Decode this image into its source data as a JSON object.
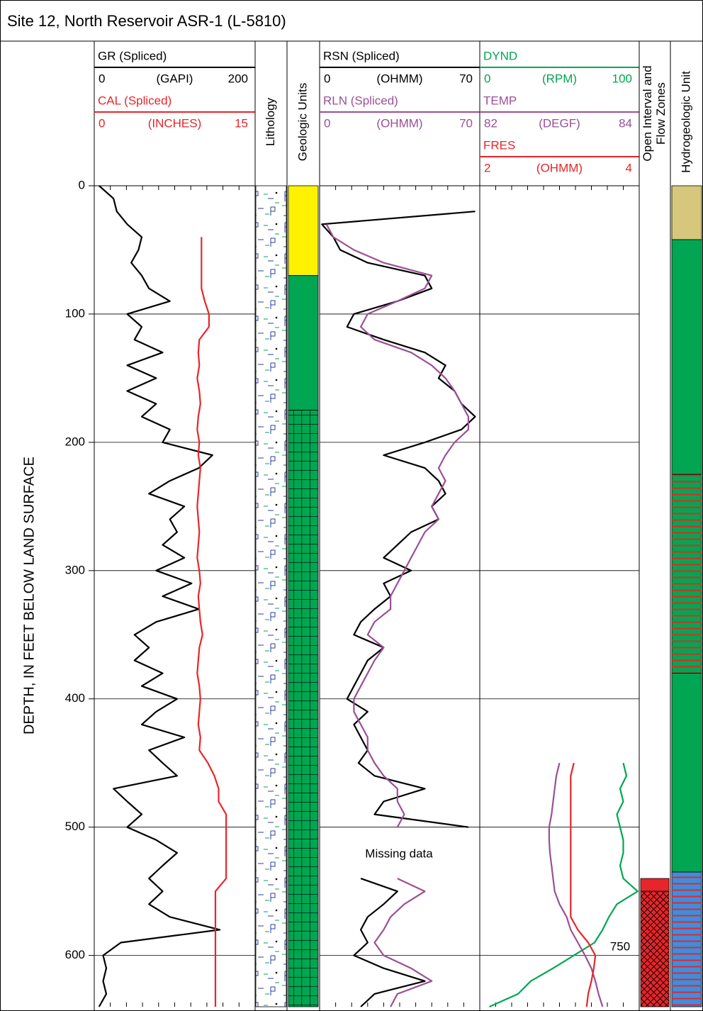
{
  "chart_data": {
    "type": "well_log",
    "title": "Site 12, North Reservoir ASR-1 (L-5810)",
    "ylabel": "DEPTH, IN FEET BELOW LAND SURFACE",
    "ylim": [
      0,
      640
    ],
    "yticks": [
      0,
      100,
      200,
      300,
      400,
      500,
      600
    ],
    "grid": true,
    "tracks": [
      {
        "depth": [
          0,
          10,
          20,
          30,
          40,
          50,
          60,
          70,
          80,
          90,
          100,
          110,
          120,
          130,
          140,
          150,
          160,
          170,
          180,
          190,
          200,
          210,
          220,
          230,
          240,
          250,
          260,
          270,
          280,
          290,
          300,
          310,
          320,
          330,
          340,
          350,
          360,
          370,
          380,
          390,
          400,
          410,
          420,
          430,
          440,
          450,
          460,
          470,
          480,
          490,
          500,
          510,
          520,
          530,
          540,
          550,
          560,
          570,
          580,
          590,
          600,
          610,
          620,
          630,
          640
        ],
        "series": [
          {
            "name": "GR (Spliced)",
            "unit": "(GAPI)",
            "xlim": [
              0,
              200
            ],
            "color": "#000000",
            "values": [
              6,
              24,
              28,
              41,
              59,
              55,
              46,
              59,
              68,
              94,
              41,
              59,
              50,
              85,
              41,
              77,
              41,
              77,
              59,
              94,
              85,
              147,
              130,
              94,
              68,
              112,
              94,
              103,
              85,
              112,
              77,
              121,
              85,
              130,
              77,
              50,
              68,
              50,
              85,
              59,
              103,
              77,
              59,
              112,
              68,
              85,
              103,
              24,
              41,
              59,
              41,
              77,
              103,
              85,
              68,
              85,
              68,
              94,
              156,
              33,
              11,
              15,
              11,
              15,
              6
            ]
          },
          {
            "name": "CAL (Spliced)",
            "unit": "(INCHES)",
            "xlim": [
              0,
              15
            ],
            "color": "#e8252a",
            "values": [
              null,
              null,
              null,
              null,
              10,
              10,
              10,
              10,
              10,
              10.3,
              10.7,
              10.7,
              9.8,
              9.7,
              9.8,
              9.6,
              9.8,
              9.9,
              9.7,
              9.6,
              9.8,
              9.7,
              9.9,
              9.8,
              9.7,
              9.6,
              9.7,
              9.8,
              9.7,
              9.6,
              9.8,
              9.9,
              9.7,
              9.8,
              9.9,
              10.1,
              9.8,
              9.7,
              9.6,
              9.8,
              9.9,
              9.8,
              9.7,
              9.9,
              9.8,
              10.6,
              11.2,
              11.6,
              11.6,
              12.3,
              12.3,
              12.3,
              12.3,
              12.3,
              12.3,
              11.3,
              11.3,
              11.3,
              11.3,
              11.3,
              11.3,
              11.3,
              11.3,
              11.3,
              11.3
            ]
          }
        ]
      },
      {
        "title": "Lithology"
      },
      {
        "title": "Geologic Units",
        "intervals": [
          {
            "top": 0,
            "bottom": 70,
            "color": "#fff200",
            "pattern": "solid"
          },
          {
            "top": 70,
            "bottom": 175,
            "color": "#00a651",
            "pattern": "solid"
          },
          {
            "top": 175,
            "bottom": 640,
            "color": "#00a651",
            "pattern": "grid"
          }
        ]
      },
      {
        "depth": [
          0,
          10,
          20,
          30,
          40,
          50,
          60,
          70,
          80,
          90,
          100,
          110,
          120,
          130,
          140,
          150,
          160,
          170,
          180,
          190,
          200,
          210,
          220,
          230,
          240,
          250,
          260,
          270,
          280,
          290,
          300,
          310,
          320,
          330,
          340,
          350,
          360,
          370,
          380,
          390,
          400,
          410,
          420,
          430,
          440,
          450,
          460,
          470,
          480,
          490,
          500,
          510,
          520,
          530,
          540,
          550,
          560,
          570,
          580,
          590,
          600,
          610,
          620,
          630,
          640
        ],
        "series": [
          {
            "name": "RSN (Spliced)",
            "unit": "(OHMM)",
            "xlim": [
              0,
              70
            ],
            "color": "#000000",
            "values": [
              null,
              null,
              68,
              1,
              6,
              9,
              21,
              46,
              49,
              34,
              15,
              12,
              28,
              46,
              55,
              52,
              59,
              62,
              68,
              62,
              46,
              28,
              46,
              52,
              55,
              49,
              52,
              40,
              34,
              28,
              40,
              28,
              31,
              24,
              18,
              15,
              28,
              21,
              18,
              15,
              12,
              21,
              15,
              18,
              21,
              17,
              24,
              46,
              28,
              24,
              65,
              null,
              null,
              null,
              18,
              34,
              28,
              21,
              18,
              21,
              15,
              28,
              46,
              24,
              18
            ]
          },
          {
            "name": "RLN (Spliced)",
            "unit": "(OHMM)",
            "xlim": [
              0,
              70
            ],
            "color": "#9b4f96",
            "values": [
              null,
              null,
              null,
              3,
              6,
              15,
              28,
              49,
              46,
              34,
              21,
              18,
              24,
              40,
              49,
              55,
              59,
              62,
              65,
              65,
              59,
              55,
              52,
              55,
              52,
              49,
              52,
              46,
              43,
              40,
              37,
              34,
              31,
              31,
              24,
              21,
              28,
              24,
              21,
              18,
              15,
              15,
              18,
              21,
              21,
              24,
              28,
              34,
              34,
              37,
              34,
              null,
              null,
              null,
              34,
              46,
              37,
              31,
              28,
              24,
              28,
              40,
              49,
              34,
              31
            ]
          }
        ],
        "annotations": [
          "Missing data"
        ]
      },
      {
        "depth": [
          450,
          460,
          470,
          480,
          490,
          500,
          510,
          520,
          530,
          540,
          550,
          560,
          570,
          580,
          590,
          600,
          610,
          620,
          630,
          640
        ],
        "series": [
          {
            "name": "DYND",
            "unit": "(RPM)",
            "xlim": [
              0,
              100
            ],
            "color": "#00a651",
            "values": [
              90,
              92,
              88,
              90,
              86,
              88,
              90,
              90,
              88,
              90,
              99,
              86,
              81,
              77,
              72,
              59,
              46,
              32,
              24,
              6
            ]
          },
          {
            "name": "TEMP",
            "unit": "(DEGF)",
            "xlim": [
              82,
              84
            ],
            "color": "#9b4f96",
            "values": [
              83,
              82.96,
              82.94,
              82.92,
              82.9,
              82.87,
              82.87,
              82.88,
              82.9,
              82.92,
              82.94,
              83,
              83.09,
              83.14,
              83.23,
              83.32,
              83.4,
              83.45,
              83.49,
              83.54
            ]
          },
          {
            "name": "FRES",
            "unit": "(OHMM)",
            "xlim": [
              2,
              4
            ],
            "color": "#e8252a",
            "values": [
              3.18,
              3.14,
              3.14,
              3.14,
              3.14,
              3.14,
              3.14,
              3.14,
              3.14,
              3.14,
              3.14,
              3.14,
              3.14,
              3.23,
              3.36,
              3.45,
              3.43,
              3.4,
              3.36,
              3.34
            ]
          }
        ],
        "annotations": [
          "750"
        ]
      },
      {
        "title_lines": [
          "Open Interval and",
          "Flow Zones"
        ],
        "intervals": [
          {
            "top": 540,
            "bottom": 550,
            "color": "#e8252a",
            "pattern": "solid"
          },
          {
            "top": 550,
            "bottom": 640,
            "color": "#e8252a",
            "pattern": "crosshatch"
          }
        ]
      },
      {
        "title": "Hydrogeologic Unit",
        "intervals": [
          {
            "top": 0,
            "bottom": 42,
            "color": "#d6c77d",
            "pattern": "solid"
          },
          {
            "top": 42,
            "bottom": 225,
            "color": "#00a651",
            "pattern": "solid"
          },
          {
            "top": 225,
            "bottom": 380,
            "color": "#00a651",
            "pattern": "stripes"
          },
          {
            "top": 380,
            "bottom": 535,
            "color": "#00a651",
            "pattern": "solid"
          },
          {
            "top": 535,
            "bottom": 640,
            "color": "#3d8fdc",
            "pattern": "stripes"
          }
        ]
      }
    ]
  }
}
